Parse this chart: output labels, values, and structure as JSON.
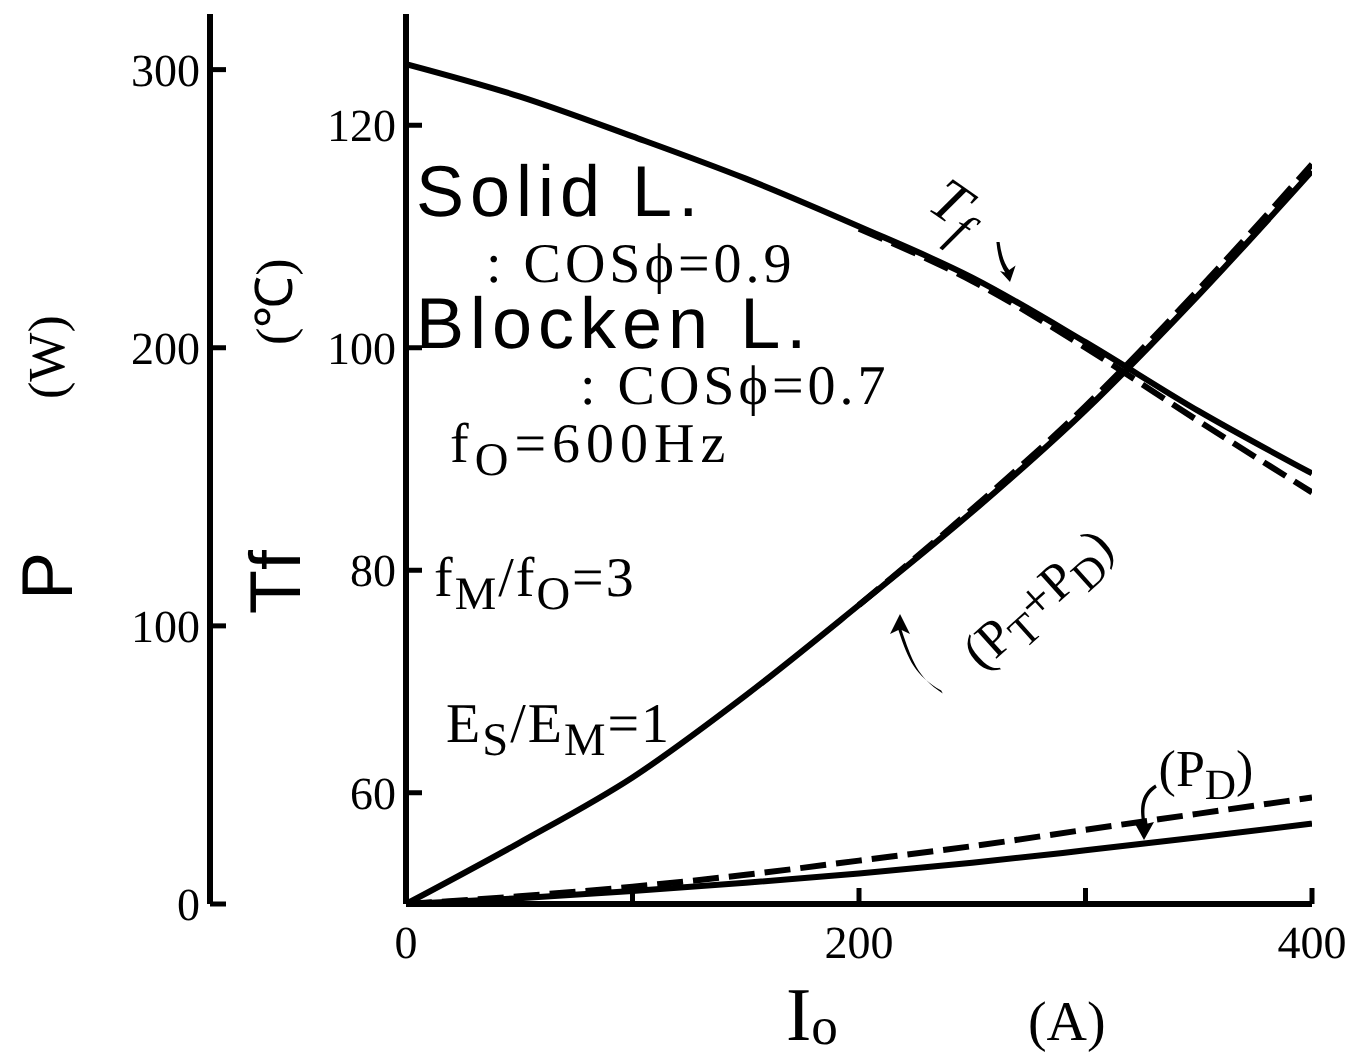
{
  "chart_data": {
    "type": "line",
    "xlabel": "I$_{o}$ (A)",
    "ylabel": "Tf (℃)",
    "y2label": "P (W)",
    "xlim": [
      0,
      400
    ],
    "xticks": [
      0,
      {
        "value": 100,
        "label": null
      },
      200,
      {
        "value": 300,
        "label": null
      },
      400
    ],
    "ylim": [
      50,
      130
    ],
    "yticks": [
      60,
      80,
      100,
      120
    ],
    "y2lim": [
      0,
      320
    ],
    "y2ticks": [
      0,
      100,
      200,
      300
    ],
    "annotations": [
      "Solid L.",
      ": COSϕ=0.9",
      "Blocken L.",
      ": COSϕ=0.7",
      "f$_{O}$=600Hz",
      "f$_{M}$/f$_{O}$=3",
      "E$_{S}$/E$_{M}$=1"
    ],
    "series": [
      {
        "name": "T$_{f}$",
        "color": "#000000",
        "line_style": "solid",
        "x": [
          0,
          50,
          100,
          150,
          200,
          250,
          300,
          350,
          400
        ],
        "values": [
          125.5,
          122.6,
          119,
          115.2,
          110.9,
          106.3,
          100.5,
          94.3,
          88.7
        ]
      },
      {
        "color": "#000000",
        "line_style": "dashed",
        "x": [
          200,
          250,
          300,
          350,
          400
        ],
        "values": [
          110.7,
          106,
          100,
          93.4,
          87
        ]
      },
      {
        "name": "(P$_{T}$+P$_{D}$)",
        "color": "#000000",
        "line_style": "solid",
        "axis": "y2",
        "x": [
          0,
          50,
          100,
          150,
          200,
          250,
          300,
          350,
          400
        ],
        "values": [
          0,
          22,
          45.5,
          75,
          107.5,
          141,
          177.5,
          219,
          263.5
        ]
      },
      {
        "color": "#000000",
        "line_style": "dashed",
        "axis": "y2",
        "x": [
          200,
          250,
          300,
          350,
          400
        ],
        "values": [
          107.5,
          142,
          179,
          221,
          266
        ]
      },
      {
        "name": "(P$_{D}$)",
        "color": "#000000",
        "line_style": "solid",
        "axis": "y2",
        "x": [
          0,
          50,
          100,
          150,
          200,
          250,
          300,
          350,
          400
        ],
        "values": [
          0,
          2.1,
          4.7,
          7.6,
          11,
          14.8,
          19.3,
          24,
          28.9
        ]
      },
      {
        "color": "#000000",
        "line_style": "dashed",
        "axis": "y2",
        "x": [
          0,
          50,
          100,
          150,
          200,
          250,
          300,
          350,
          400
        ],
        "values": [
          0,
          2.8,
          6.2,
          10.5,
          15.6,
          20.8,
          26.7,
          32.5,
          38.3
        ]
      }
    ]
  }
}
